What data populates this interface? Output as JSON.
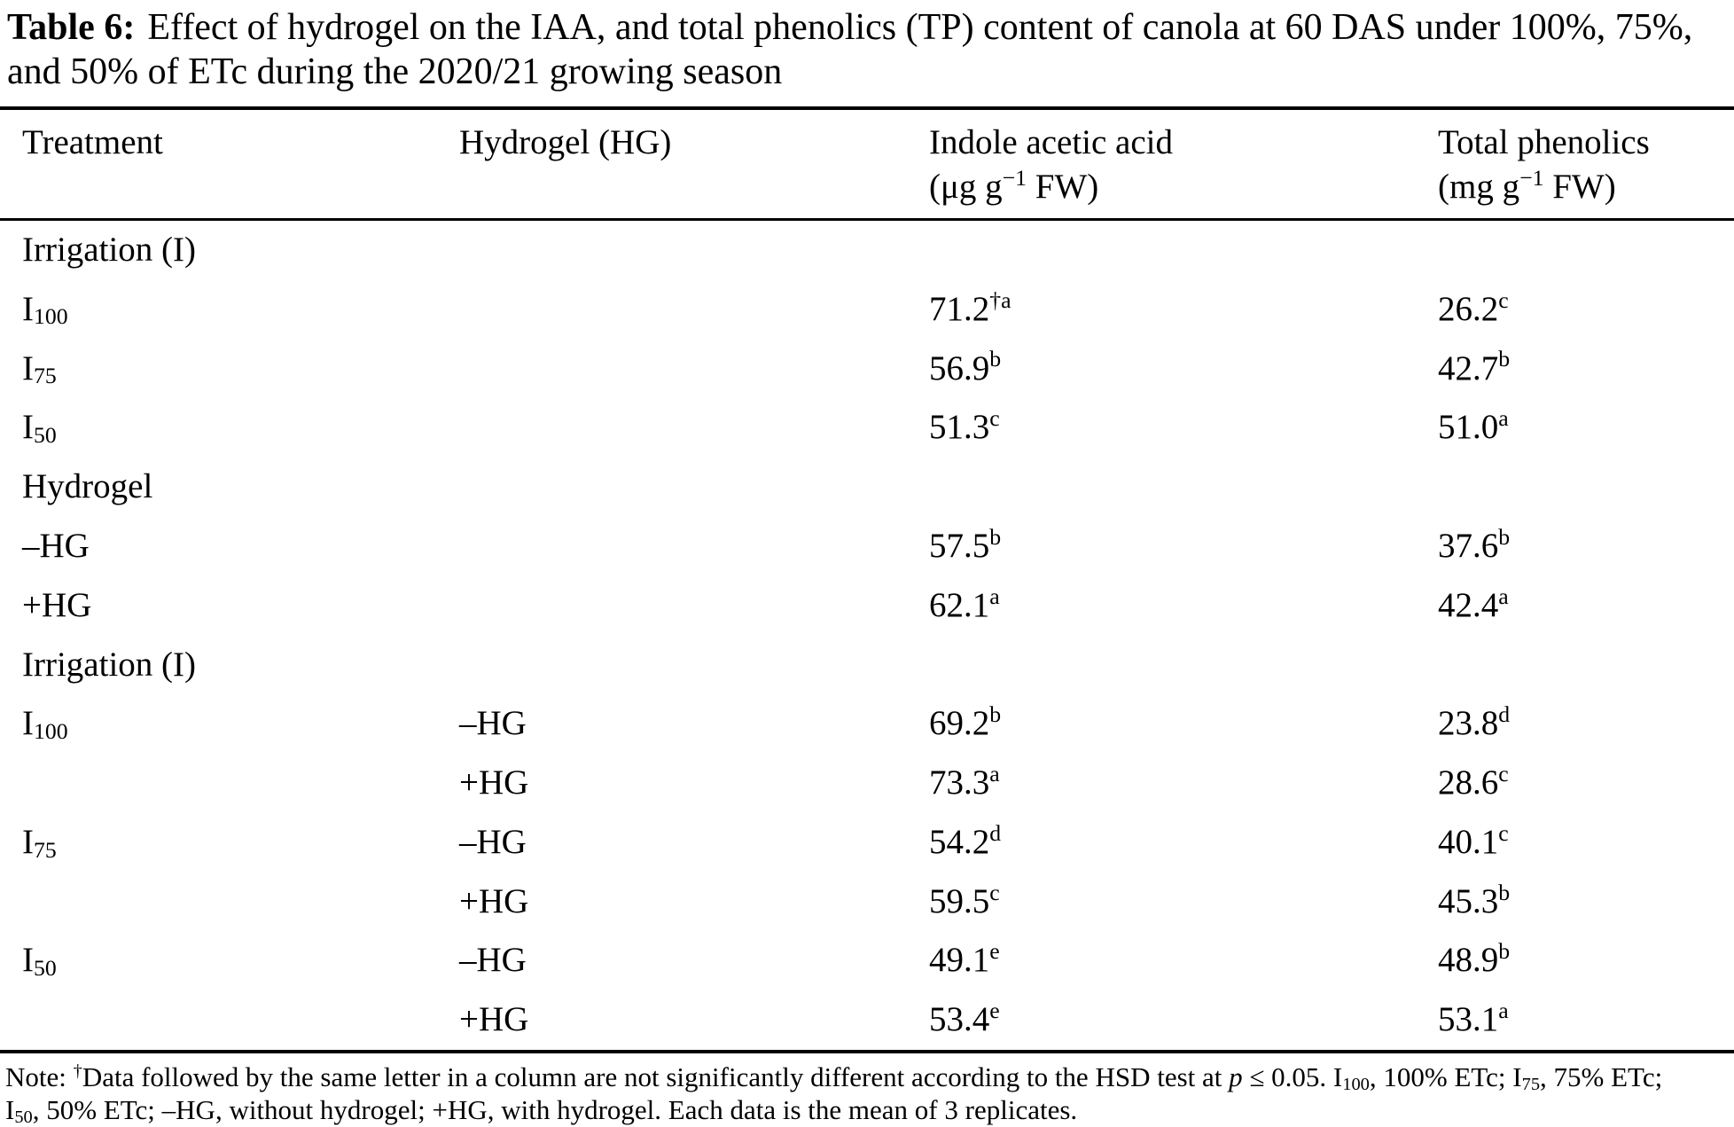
{
  "caption": {
    "label": "Table 6:",
    "text": "Effect of hydrogel on the IAA, and total phenolics (TP) content of canola at 60 DAS under 100%, 75%, and 50% of ETc during the 2020/21 growing season"
  },
  "table": {
    "headers": [
      {
        "id": "treatment",
        "lines": [
          "Treatment"
        ]
      },
      {
        "id": "hydrogel",
        "lines": [
          "Hydrogel (HG)"
        ]
      },
      {
        "id": "iaa",
        "lines": [
          "Indole acetic acid",
          "(μg g^−1^ FW)"
        ]
      },
      {
        "id": "tp",
        "lines": [
          "Total phenolics",
          "(mg g^−1^ FW)"
        ]
      }
    ],
    "rows": [
      {
        "type": "section",
        "cells": [
          "Irrigation (I)",
          "",
          "",
          ""
        ]
      },
      {
        "type": "data",
        "cells": [
          "I~100~",
          "",
          "71.2^†a^",
          "26.2^c^"
        ]
      },
      {
        "type": "data",
        "cells": [
          "I~75~",
          "",
          "56.9^b^",
          "42.7^b^"
        ]
      },
      {
        "type": "data",
        "cells": [
          "I~50~",
          "",
          "51.3^c^",
          "51.0^a^"
        ]
      },
      {
        "type": "section",
        "cells": [
          "Hydrogel",
          "",
          "",
          ""
        ]
      },
      {
        "type": "data",
        "cells": [
          "–HG",
          "",
          "57.5^b^",
          "37.6^b^"
        ]
      },
      {
        "type": "data",
        "cells": [
          "+HG",
          "",
          "62.1^a^",
          "42.4^a^"
        ]
      },
      {
        "type": "section",
        "cells": [
          "Irrigation (I)",
          "",
          "",
          ""
        ]
      },
      {
        "type": "data",
        "cells": [
          "I~100~",
          "–HG",
          "69.2^b^",
          "23.8^d^"
        ]
      },
      {
        "type": "data",
        "cells": [
          "",
          "+HG",
          "73.3^a^",
          "28.6^c^"
        ]
      },
      {
        "type": "data",
        "cells": [
          "I~75~",
          "–HG",
          "54.2^d^",
          "40.1^c^"
        ]
      },
      {
        "type": "data",
        "cells": [
          "",
          "+HG",
          "59.5^c^",
          "45.3^b^"
        ]
      },
      {
        "type": "data",
        "cells": [
          "I~50~",
          "–HG",
          "49.1^e^",
          "48.9^b^"
        ]
      },
      {
        "type": "data",
        "cells": [
          "",
          "+HG",
          "53.4^e^",
          "53.1^a^"
        ]
      }
    ]
  },
  "footnote": {
    "lines": [
      "Note: ^†^Data followed by the same letter in a column are not significantly different according to the HSD test at *p* ≤ 0.05. I~100~, 100% ETc; I~75~, 75% ETc;",
      "I~50~, 50% ETc; –HG, without hydrogel; +HG, with hydrogel. Each data is the mean of 3 replicates."
    ]
  }
}
